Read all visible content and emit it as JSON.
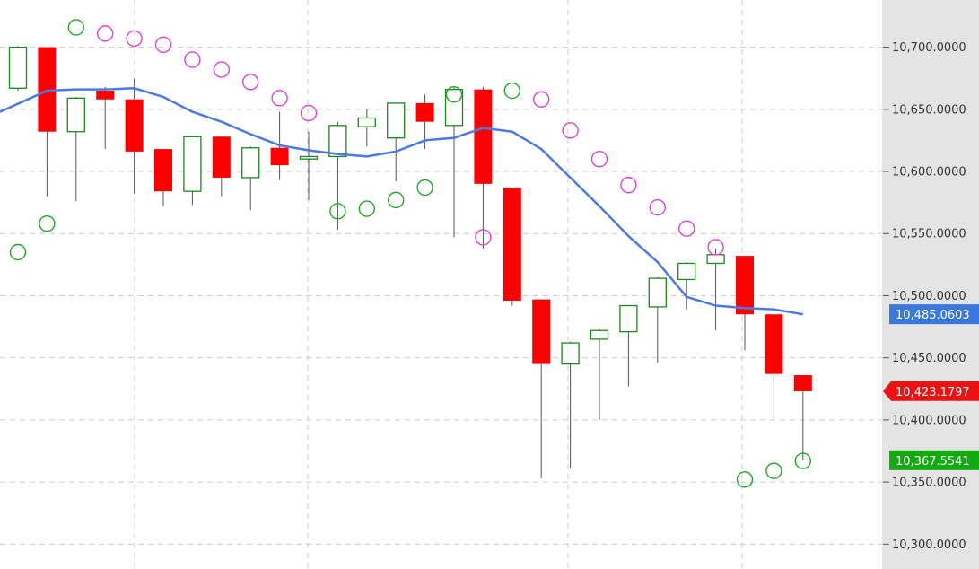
{
  "chart_data": {
    "type": "candlestick",
    "y_axis": {
      "ticks": [
        10300,
        10350,
        10400,
        10450,
        10500,
        10550,
        10600,
        10650,
        10700
      ],
      "tick_labels": [
        "10,300.0000",
        "10,350.0000",
        "10,400.0000",
        "10,450.0000",
        "10,500.0000",
        "10,550.0000",
        "10,600.0000",
        "10,650.0000",
        "10,700.0000"
      ],
      "range": [
        10280,
        10738
      ]
    },
    "grid": true,
    "candles": [
      {
        "open": 10667,
        "high": 10701,
        "low": 10665,
        "close": 10700,
        "dir": "up"
      },
      {
        "open": 10700,
        "high": 10700,
        "low": 10580,
        "close": 10632,
        "dir": "down"
      },
      {
        "open": 10632,
        "high": 10660,
        "low": 10576,
        "close": 10659,
        "dir": "up"
      },
      {
        "open": 10665,
        "high": 10668,
        "low": 10618,
        "close": 10658,
        "dir": "down"
      },
      {
        "open": 10658,
        "high": 10675,
        "low": 10582,
        "close": 10616,
        "dir": "down"
      },
      {
        "open": 10618,
        "high": 10618,
        "low": 10572,
        "close": 10584,
        "dir": "down"
      },
      {
        "open": 10584,
        "high": 10628,
        "low": 10573,
        "close": 10628,
        "dir": "up"
      },
      {
        "open": 10628,
        "high": 10628,
        "low": 10580,
        "close": 10595,
        "dir": "down"
      },
      {
        "open": 10595,
        "high": 10620,
        "low": 10569,
        "close": 10619,
        "dir": "up"
      },
      {
        "open": 10619,
        "high": 10648,
        "low": 10593,
        "close": 10605,
        "dir": "down"
      },
      {
        "open": 10610,
        "high": 10632,
        "low": 10577,
        "close": 10612,
        "dir": "up"
      },
      {
        "open": 10612,
        "high": 10640,
        "low": 10553,
        "close": 10637,
        "dir": "up"
      },
      {
        "open": 10636,
        "high": 10650,
        "low": 10620,
        "close": 10643,
        "dir": "up"
      },
      {
        "open": 10627,
        "high": 10655,
        "low": 10592,
        "close": 10655,
        "dir": "up"
      },
      {
        "open": 10655,
        "high": 10662,
        "low": 10618,
        "close": 10640,
        "dir": "down"
      },
      {
        "open": 10637,
        "high": 10668,
        "low": 10547,
        "close": 10666,
        "dir": "up"
      },
      {
        "open": 10666,
        "high": 10668,
        "low": 10538,
        "close": 10590,
        "dir": "down"
      },
      {
        "open": 10587,
        "high": 10587,
        "low": 10492,
        "close": 10496,
        "dir": "down"
      },
      {
        "open": 10497,
        "high": 10497,
        "low": 10353,
        "close": 10445,
        "dir": "down"
      },
      {
        "open": 10445,
        "high": 10463,
        "low": 10361,
        "close": 10462,
        "dir": "up"
      },
      {
        "open": 10465,
        "high": 10473,
        "low": 10400,
        "close": 10472,
        "dir": "up"
      },
      {
        "open": 10471,
        "high": 10491,
        "low": 10427,
        "close": 10492,
        "dir": "up"
      },
      {
        "open": 10491,
        "high": 10515,
        "low": 10446,
        "close": 10514,
        "dir": "up"
      },
      {
        "open": 10513,
        "high": 10527,
        "low": 10489,
        "close": 10526,
        "dir": "up"
      },
      {
        "open": 10526,
        "high": 10538,
        "low": 10472,
        "close": 10533,
        "dir": "up"
      },
      {
        "open": 10532,
        "high": 10532,
        "low": 10456,
        "close": 10485,
        "dir": "down"
      },
      {
        "open": 10485,
        "high": 10485,
        "low": 10401,
        "close": 10437,
        "dir": "down"
      },
      {
        "open": 10436,
        "high": 10436,
        "low": 10368,
        "close": 10423,
        "dir": "down"
      }
    ],
    "moving_average": {
      "color": "#4a7be5",
      "values": [
        null,
        10665,
        10666,
        10666,
        10667,
        10660,
        10648,
        10640,
        10630,
        10621,
        10617,
        10614,
        10612,
        10616,
        10625,
        10627,
        10635,
        10632,
        10618,
        10595,
        10572,
        10548,
        10527,
        10499,
        10492,
        10490,
        10489,
        10485
      ]
    },
    "parabolic_sar": {
      "above_color": "#e040e0",
      "below_color": "#22aa22",
      "points": [
        {
          "index": 0,
          "value": 10535,
          "pos": "below"
        },
        {
          "index": 1,
          "value": 10558,
          "pos": "below"
        },
        {
          "index": 2,
          "value": 10716,
          "pos": "below"
        },
        {
          "index": 3,
          "value": 10711,
          "pos": "above"
        },
        {
          "index": 4,
          "value": 10707,
          "pos": "above"
        },
        {
          "index": 5,
          "value": 10702,
          "pos": "above"
        },
        {
          "index": 6,
          "value": 10690,
          "pos": "above"
        },
        {
          "index": 7,
          "value": 10682,
          "pos": "above"
        },
        {
          "index": 8,
          "value": 10672,
          "pos": "above"
        },
        {
          "index": 9,
          "value": 10659,
          "pos": "above"
        },
        {
          "index": 10,
          "value": 10647,
          "pos": "above"
        },
        {
          "index": 11,
          "value": 10568,
          "pos": "below"
        },
        {
          "index": 12,
          "value": 10570,
          "pos": "below"
        },
        {
          "index": 13,
          "value": 10577,
          "pos": "below"
        },
        {
          "index": 14,
          "value": 10587,
          "pos": "below"
        },
        {
          "index": 15,
          "value": 10662,
          "pos": "below"
        },
        {
          "index": 16,
          "value": 10547,
          "pos": "above"
        },
        {
          "index": 17,
          "value": 10665,
          "pos": "below"
        },
        {
          "index": 18,
          "value": 10658,
          "pos": "above"
        },
        {
          "index": 19,
          "value": 10633,
          "pos": "above"
        },
        {
          "index": 20,
          "value": 10610,
          "pos": "above"
        },
        {
          "index": 21,
          "value": 10589,
          "pos": "above"
        },
        {
          "index": 22,
          "value": 10571,
          "pos": "above"
        },
        {
          "index": 23,
          "value": 10554,
          "pos": "above"
        },
        {
          "index": 24,
          "value": 10539,
          "pos": "above"
        },
        {
          "index": 25,
          "value": 10352,
          "pos": "below"
        },
        {
          "index": 26,
          "value": 10359,
          "pos": "below"
        },
        {
          "index": 27,
          "value": 10367,
          "pos": "below"
        }
      ]
    },
    "price_badges": [
      {
        "label": "10,485.0603",
        "value": 10485.0603,
        "color": "#3a78e0",
        "shape": "rect"
      },
      {
        "label": "10,423.1797",
        "value": 10423.1797,
        "color": "#ee1111",
        "shape": "arrow"
      },
      {
        "label": "10,367.5541",
        "value": 10367.5541,
        "color": "#11aa11",
        "shape": "rect"
      }
    ],
    "colors": {
      "up_border": "#1a8a1a",
      "down_fill": "#ff0000",
      "wick": "#555555",
      "axis_bg": "#e4e4e4",
      "grid": "#cccccc"
    }
  }
}
